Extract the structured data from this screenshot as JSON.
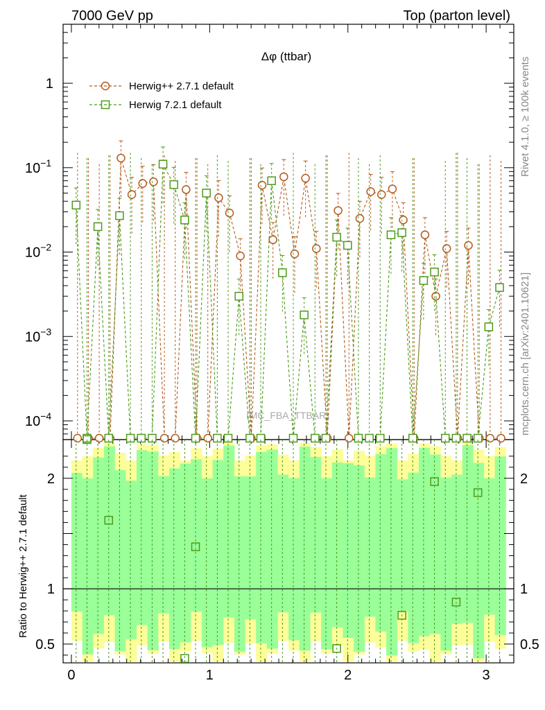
{
  "header": {
    "left": "7000 GeV pp",
    "right": "Top (parton level)"
  },
  "side": {
    "rivet": "Rivet 4.1.0, ≥ 100k events",
    "mcplots": "mcplots.cern.ch [arXiv:2401.10621]"
  },
  "chart_data": {
    "type": "line",
    "title": "Δφ (ttbar)",
    "watermark": "(MC_FBA_TTBAR)",
    "xlim": [
      -0.06,
      3.2
    ],
    "xticks": [
      0,
      1,
      2,
      3
    ],
    "top_panel": {
      "yscale": "log",
      "ylim": [
        6e-05,
        5
      ],
      "yticks": [
        {
          "v": 1,
          "label": "1"
        },
        {
          "v": 0.1,
          "label": "10",
          "exp": "−1"
        },
        {
          "v": 0.01,
          "label": "10",
          "exp": "−2"
        },
        {
          "v": 0.001,
          "label": "10",
          "exp": "−3"
        },
        {
          "v": 0.0001,
          "label": "10",
          "exp": "−4"
        }
      ]
    },
    "ratio_panel": {
      "ylabel": "Ratio to Herwig++ 2.7.1 default",
      "ylim": [
        0.33,
        2.35
      ],
      "yticks": [
        {
          "v": 0.5,
          "label": "0.5"
        },
        {
          "v": 1,
          "label": "1"
        },
        {
          "v": 2,
          "label": "2"
        }
      ]
    },
    "x": [
      0.0393,
      0.1178,
      0.1963,
      0.2749,
      0.3534,
      0.432,
      0.5105,
      0.589,
      0.6676,
      0.7461,
      0.8247,
      0.9032,
      0.9817,
      1.0603,
      1.1388,
      1.2174,
      1.2959,
      1.3744,
      1.453,
      1.5315,
      1.6101,
      1.6886,
      1.7671,
      1.8457,
      1.9242,
      2.0028,
      2.0813,
      2.1598,
      2.2384,
      2.3169,
      2.3955,
      2.474,
      2.5525,
      2.6311,
      2.7096,
      2.7882,
      2.8667,
      2.9452,
      3.0238,
      3.1023
    ],
    "series": [
      {
        "name": "Herwig++ 2.7.1 default",
        "color": "#b35a1a",
        "marker": "circle",
        "values": [
          0,
          0,
          0,
          0,
          0.13,
          0.048,
          0.065,
          0.068,
          0,
          0,
          0.055,
          0,
          0,
          0.044,
          0.029,
          0.009,
          0,
          0.062,
          0.014,
          0.078,
          0.0095,
          0.075,
          0.011,
          0,
          0.031,
          0,
          0.025,
          0.052,
          0.048,
          0.056,
          0.024,
          0,
          0.016,
          0.003,
          0.011,
          0,
          0.012,
          0,
          0,
          0
        ]
      },
      {
        "name": "Herwig 7.2.1 default",
        "color": "#4c9a1a",
        "marker": "square",
        "values": [
          0.036,
          0,
          0.02,
          0,
          0.027,
          0,
          0,
          0,
          0.11,
          0.063,
          0.024,
          0,
          0.05,
          0,
          0,
          0.003,
          0,
          0,
          0.07,
          0.0057,
          0,
          0.0018,
          0,
          0,
          0.015,
          0.012,
          0,
          0,
          0,
          0.016,
          0.017,
          0,
          0.0046,
          0.0058,
          0,
          0,
          0,
          0,
          0.0013,
          0.0038
        ]
      }
    ],
    "ratio_points": [
      {
        "x": 0.1178,
        "y": 2.35
      },
      {
        "x": 0.2749,
        "y": 1.62
      },
      {
        "x": 0.8247,
        "y": 0.37
      },
      {
        "x": 0.9032,
        "y": 1.38
      },
      {
        "x": 1.9242,
        "y": 0.46
      },
      {
        "x": 2.3955,
        "y": 0.76
      },
      {
        "x": 2.6311,
        "y": 1.97
      },
      {
        "x": 2.7882,
        "y": 0.88
      },
      {
        "x": 2.9452,
        "y": 1.87
      }
    ]
  }
}
